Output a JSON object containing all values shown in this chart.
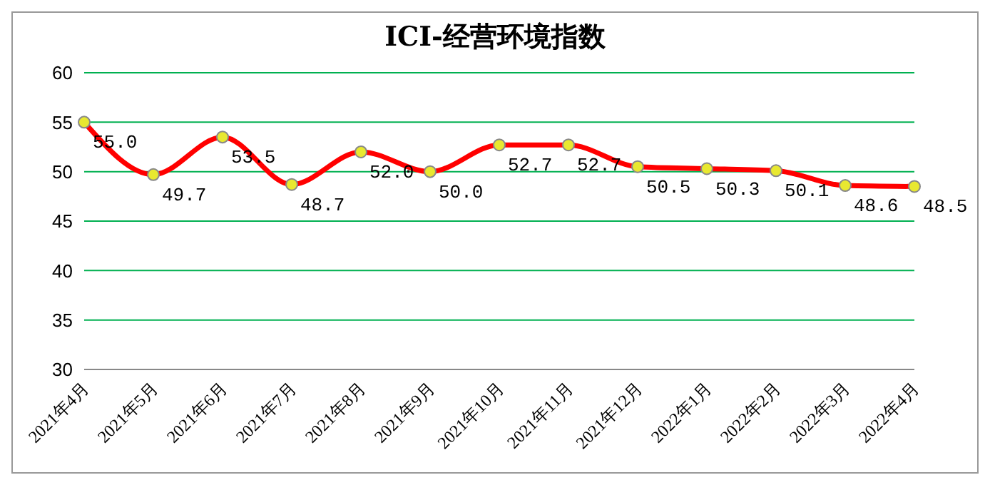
{
  "chart_data": {
    "type": "line",
    "title": "ICI-经营环境指数",
    "categories": [
      "2021年4月",
      "2021年5月",
      "2021年6月",
      "2021年7月",
      "2021年8月",
      "2021年9月",
      "2021年10月",
      "2021年11月",
      "2021年12月",
      "2022年1月",
      "2022年2月",
      "2022年3月",
      "2022年4月"
    ],
    "values": [
      55.0,
      49.7,
      53.5,
      48.7,
      52.0,
      50.0,
      52.7,
      52.7,
      50.5,
      50.3,
      50.1,
      48.6,
      48.5
    ],
    "value_labels": [
      "55.0",
      "49.7",
      "53.5",
      "48.7",
      "52.0",
      "50.0",
      "52.7",
      "52.7",
      "50.5",
      "50.3",
      "50.1",
      "48.6",
      "48.5"
    ],
    "color": "#ff0000",
    "ylim": [
      30,
      60
    ],
    "yticks": [
      30,
      35,
      40,
      45,
      50,
      55,
      60
    ],
    "grid": "y",
    "marker": "circle",
    "line_style": "solid"
  }
}
